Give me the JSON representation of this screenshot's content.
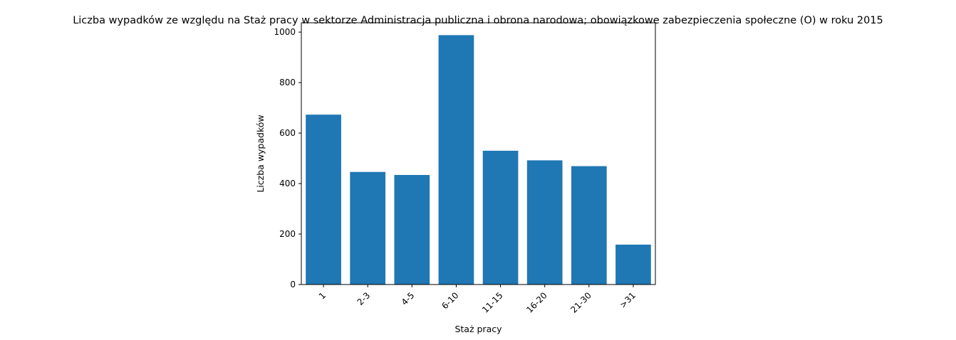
{
  "chart_data": {
    "type": "bar",
    "title": "Liczba wypadków ze względu na Staż pracy w sektorze Administracja publiczna i obrona narodowa; obowiązkowe zabezpieczenia społeczne  (O)  w roku 2015",
    "xlabel": "Staż pracy",
    "ylabel": "Liczba wypadków",
    "categories": [
      "1",
      "2-3",
      "4-5",
      "6-10",
      "11-15",
      "16-20",
      "21-30",
      ">31"
    ],
    "values": [
      673,
      446,
      434,
      988,
      530,
      492,
      469,
      158
    ],
    "ylim": [
      0,
      1037
    ],
    "yticks": [
      0,
      200,
      400,
      600,
      800,
      1000
    ],
    "bar_color": "#1f77b4",
    "grid": false,
    "legend": "none"
  }
}
